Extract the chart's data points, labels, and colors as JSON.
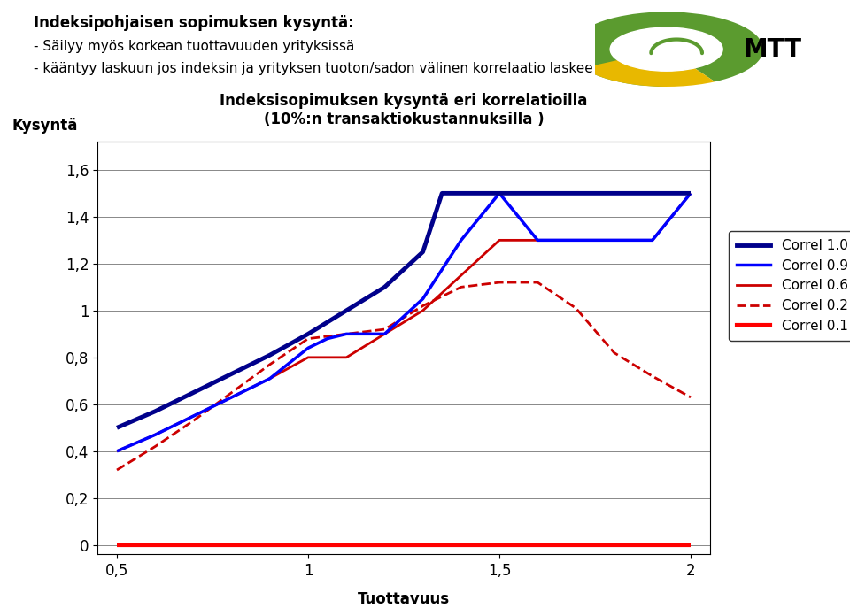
{
  "title_line1": "Indeksisopimuksen kysyntä eri korrelatioilla",
  "title_line2": "(10%:n transaktiokustannuksilla )",
  "header_bold": "Indeksipohjaisen sopimuksen kysyntä:",
  "header_line1": "- Säilyy myös korkean tuottavuuden yrityksissä",
  "header_line2": "- kääntyy laskuun jos indeksin ja yrityksen tuoton/sadon välinen korrelaatio laskee",
  "ylabel": "Kysyntä",
  "xlabel": "Tuottavuus",
  "xlim": [
    0.45,
    2.05
  ],
  "ylim": [
    -0.04,
    1.72
  ],
  "xticks": [
    0.5,
    1.0,
    1.5,
    2.0
  ],
  "xtick_labels": [
    "0,5",
    "1",
    "1,5",
    "2"
  ],
  "yticks": [
    0,
    0.2,
    0.4,
    0.6,
    0.8,
    1.0,
    1.2,
    1.4,
    1.6
  ],
  "ytick_labels": [
    "0",
    "0,2",
    "0,4",
    "0,6",
    "0,8",
    "1",
    "1,2",
    "1,4",
    "1,6"
  ],
  "series": {
    "correl_10": {
      "x": [
        0.5,
        0.6,
        0.7,
        0.8,
        0.9,
        1.0,
        1.1,
        1.2,
        1.3,
        1.35,
        1.4,
        1.5,
        1.6,
        1.7,
        1.8,
        1.9,
        2.0
      ],
      "y": [
        0.5,
        0.57,
        0.65,
        0.73,
        0.81,
        0.9,
        1.0,
        1.1,
        1.25,
        1.5,
        1.5,
        1.5,
        1.5,
        1.5,
        1.5,
        1.5,
        1.5
      ],
      "color": "#00008B",
      "linewidth": 3.5,
      "linestyle": "solid",
      "label": "Correl 1.0"
    },
    "correl_09": {
      "x": [
        0.5,
        0.6,
        0.7,
        0.8,
        0.9,
        1.0,
        1.05,
        1.1,
        1.2,
        1.3,
        1.4,
        1.5,
        1.6,
        1.7,
        1.8,
        1.85,
        1.9,
        2.0
      ],
      "y": [
        0.4,
        0.47,
        0.55,
        0.63,
        0.71,
        0.84,
        0.88,
        0.9,
        0.9,
        1.05,
        1.3,
        1.5,
        1.3,
        1.3,
        1.3,
        1.3,
        1.3,
        1.5
      ],
      "color": "#0000FF",
      "linewidth": 2.5,
      "linestyle": "solid",
      "label": "Correl 0.9"
    },
    "correl_06": {
      "x": [
        0.5,
        0.6,
        0.7,
        0.8,
        0.9,
        1.0,
        1.1,
        1.2,
        1.3,
        1.4,
        1.5,
        1.6,
        1.7,
        1.8,
        1.9,
        2.0
      ],
      "y": [
        0.4,
        0.47,
        0.55,
        0.63,
        0.71,
        0.8,
        0.8,
        0.9,
        1.0,
        1.15,
        1.3,
        1.3,
        1.3,
        1.3,
        1.3,
        1.5
      ],
      "color": "#CC0000",
      "linewidth": 2.0,
      "linestyle": "solid",
      "label": "Correl 0.6"
    },
    "correl_02": {
      "x": [
        0.5,
        0.6,
        0.7,
        0.8,
        0.9,
        1.0,
        1.1,
        1.2,
        1.3,
        1.4,
        1.5,
        1.6,
        1.7,
        1.8,
        1.9,
        2.0
      ],
      "y": [
        0.32,
        0.42,
        0.53,
        0.65,
        0.77,
        0.88,
        0.9,
        0.92,
        1.02,
        1.1,
        1.12,
        1.12,
        1.01,
        0.82,
        0.72,
        0.63
      ],
      "color": "#CC0000",
      "linewidth": 2.0,
      "linestyle": "dashed",
      "label": "Correl 0.2"
    },
    "correl_01": {
      "x": [
        0.5,
        2.0
      ],
      "y": [
        0.0,
        0.0
      ],
      "color": "#FF0000",
      "linewidth": 3.0,
      "linestyle": "solid",
      "label": "Correl 0.1"
    }
  },
  "background_color": "#FFFFFF",
  "plot_bg_color": "#FFFFFF",
  "yellow_bar_color": "#D4AF00",
  "grid_color": "#888888"
}
